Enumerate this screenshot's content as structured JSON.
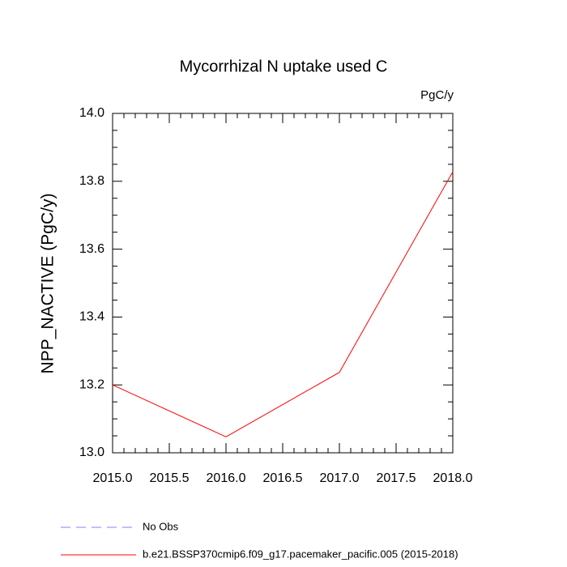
{
  "chart_data": {
    "type": "line",
    "title": "Mycorrhizal N uptake used C",
    "units": "PgC/y",
    "y_label": "NPP_NACTIVE  (PgC/y)",
    "x": [
      2015,
      2016,
      2017,
      2018
    ],
    "series": [
      {
        "name": "No Obs",
        "color": "#8080ff",
        "dashed": true,
        "values": [
          null,
          null,
          null,
          null
        ]
      },
      {
        "name": "b.e21.BSSP370cmip6.f09_g17.pacemaker_pacific.005 (2015-2018)",
        "color": "#ff0000",
        "dashed": false,
        "values": [
          13.2,
          13.047,
          13.237,
          13.828
        ]
      }
    ],
    "xlim": [
      2015,
      2018
    ],
    "xticks": [
      {
        "value": 2015,
        "label": "2015.0"
      },
      2015.5,
      {
        "value": 2016,
        "label": "2016.0"
      },
      2016.5,
      {
        "value": 2017,
        "label": "2017.0"
      },
      2017.5,
      {
        "value": 2018,
        "label": "2018.0"
      }
    ],
    "ylim": [
      13,
      14
    ],
    "yticks": [
      {
        "value": 13,
        "label": "13.0"
      },
      13.2,
      13.4,
      13.6,
      13.8,
      {
        "value": 14,
        "label": "14.0"
      }
    ]
  }
}
